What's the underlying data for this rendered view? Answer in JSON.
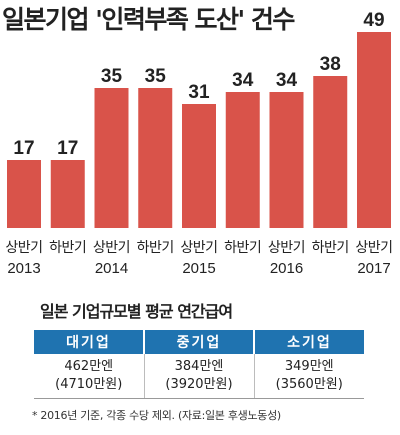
{
  "chart_data": {
    "type": "bar",
    "title": "일본기업 '인력부족 도산' 건수",
    "categories": [
      {
        "half": "상반기",
        "year": "2013"
      },
      {
        "half": "하반기",
        "year": ""
      },
      {
        "half": "상반기",
        "year": "2014"
      },
      {
        "half": "하반기",
        "year": ""
      },
      {
        "half": "상반기",
        "year": "2015"
      },
      {
        "half": "하반기",
        "year": ""
      },
      {
        "half": "상반기",
        "year": "2016"
      },
      {
        "half": "하반기",
        "year": ""
      },
      {
        "half": "상반기",
        "year": "2017"
      }
    ],
    "values": [
      17,
      17,
      35,
      35,
      31,
      34,
      34,
      38,
      49
    ],
    "ylim": [
      0,
      49
    ],
    "bar_color": "#d9534a"
  },
  "table": {
    "title": "일본 기업규모별 평균 연간급여",
    "headers": [
      "대기업",
      "중기업",
      "소기업"
    ],
    "cells": [
      {
        "yen": "462만엔",
        "won": "(4710만원)"
      },
      {
        "yen": "384만엔",
        "won": "(3920만원)"
      },
      {
        "yen": "349만엔",
        "won": "(3560만원)"
      }
    ],
    "header_color": "#1f73b0"
  },
  "footnote": "* 2016년 기준, 각종 수당 제외. (자료:일본 후생노동성)"
}
